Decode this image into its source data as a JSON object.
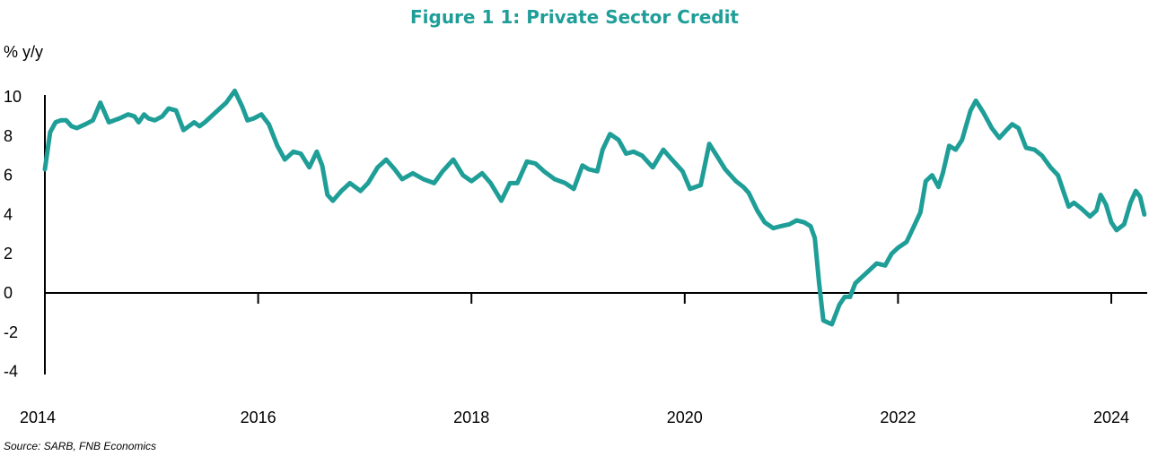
{
  "colors": {
    "series": "#1f9e98",
    "title": "#1f9e98",
    "axis": "#000000"
  },
  "title": "Figure 1 1: Private Sector Credit",
  "ylabel": "% y/y",
  "source": "Source: SARB, FNB Economics",
  "chart_data": {
    "type": "line",
    "title": "Figure 1 1: Private Sector Credit",
    "ylabel": "% y/y",
    "xlabel": "",
    "xlim": [
      2014,
      2024.35
    ],
    "ylim": [
      -4,
      10
    ],
    "y_ticks": [
      10,
      8,
      6,
      4,
      2,
      0,
      -2,
      -4
    ],
    "x_ticks": [
      2014,
      2016,
      2018,
      2020,
      2022,
      2024
    ],
    "x_tick_labels": [
      "2014",
      "2016",
      "2018",
      "2020",
      "2022",
      "2024"
    ],
    "grid": false,
    "legend": "none",
    "series": [
      {
        "points": [
          [
            2014.0,
            6.3
          ],
          [
            2014.05,
            8.2
          ],
          [
            2014.1,
            8.7
          ],
          [
            2014.15,
            8.8
          ],
          [
            2014.2,
            8.8
          ],
          [
            2014.25,
            8.5
          ],
          [
            2014.3,
            8.4
          ],
          [
            2014.38,
            8.6
          ],
          [
            2014.45,
            8.8
          ],
          [
            2014.52,
            9.7
          ],
          [
            2014.6,
            8.7
          ],
          [
            2014.7,
            8.9
          ],
          [
            2014.78,
            9.1
          ],
          [
            2014.84,
            9.0
          ],
          [
            2014.88,
            8.7
          ],
          [
            2014.93,
            9.1
          ],
          [
            2014.97,
            8.9
          ],
          [
            2015.03,
            8.8
          ],
          [
            2015.1,
            9.0
          ],
          [
            2015.16,
            9.4
          ],
          [
            2015.23,
            9.3
          ],
          [
            2015.3,
            8.3
          ],
          [
            2015.35,
            8.5
          ],
          [
            2015.4,
            8.7
          ],
          [
            2015.45,
            8.5
          ],
          [
            2015.5,
            8.7
          ],
          [
            2015.6,
            9.2
          ],
          [
            2015.7,
            9.7
          ],
          [
            2015.78,
            10.3
          ],
          [
            2015.85,
            9.5
          ],
          [
            2015.9,
            8.8
          ],
          [
            2015.96,
            8.9
          ],
          [
            2016.03,
            9.1
          ],
          [
            2016.1,
            8.6
          ],
          [
            2016.18,
            7.5
          ],
          [
            2016.25,
            6.8
          ],
          [
            2016.33,
            7.2
          ],
          [
            2016.4,
            7.1
          ],
          [
            2016.48,
            6.4
          ],
          [
            2016.55,
            7.2
          ],
          [
            2016.6,
            6.5
          ],
          [
            2016.65,
            5.0
          ],
          [
            2016.7,
            4.7
          ],
          [
            2016.78,
            5.2
          ],
          [
            2016.86,
            5.6
          ],
          [
            2016.96,
            5.2
          ],
          [
            2017.03,
            5.6
          ],
          [
            2017.12,
            6.4
          ],
          [
            2017.2,
            6.8
          ],
          [
            2017.28,
            6.3
          ],
          [
            2017.35,
            5.8
          ],
          [
            2017.45,
            6.1
          ],
          [
            2017.55,
            5.8
          ],
          [
            2017.65,
            5.6
          ],
          [
            2017.73,
            6.2
          ],
          [
            2017.83,
            6.8
          ],
          [
            2017.92,
            6.0
          ],
          [
            2018.0,
            5.7
          ],
          [
            2018.1,
            6.1
          ],
          [
            2018.18,
            5.6
          ],
          [
            2018.28,
            4.7
          ],
          [
            2018.36,
            5.6
          ],
          [
            2018.43,
            5.6
          ],
          [
            2018.52,
            6.7
          ],
          [
            2018.6,
            6.6
          ],
          [
            2018.68,
            6.2
          ],
          [
            2018.78,
            5.8
          ],
          [
            2018.88,
            5.6
          ],
          [
            2018.96,
            5.3
          ],
          [
            2019.04,
            6.5
          ],
          [
            2019.1,
            6.3
          ],
          [
            2019.18,
            6.2
          ],
          [
            2019.23,
            7.3
          ],
          [
            2019.3,
            8.1
          ],
          [
            2019.38,
            7.8
          ],
          [
            2019.45,
            7.1
          ],
          [
            2019.52,
            7.2
          ],
          [
            2019.6,
            7.0
          ],
          [
            2019.7,
            6.4
          ],
          [
            2019.8,
            7.3
          ],
          [
            2019.88,
            6.8
          ],
          [
            2019.98,
            6.2
          ],
          [
            2020.05,
            5.3
          ],
          [
            2020.15,
            5.5
          ],
          [
            2020.23,
            7.6
          ],
          [
            2020.3,
            7.0
          ],
          [
            2020.38,
            6.3
          ],
          [
            2020.48,
            5.7
          ],
          [
            2020.55,
            5.4
          ],
          [
            2020.6,
            5.1
          ],
          [
            2020.68,
            4.2
          ],
          [
            2020.75,
            3.6
          ],
          [
            2020.83,
            3.3
          ],
          [
            2020.9,
            3.4
          ],
          [
            2020.98,
            3.5
          ],
          [
            2021.05,
            3.7
          ],
          [
            2021.12,
            3.6
          ],
          [
            2021.18,
            3.4
          ],
          [
            2021.22,
            2.8
          ],
          [
            2021.26,
            0.5
          ],
          [
            2021.3,
            -1.4
          ],
          [
            2021.38,
            -1.6
          ],
          [
            2021.45,
            -0.6
          ],
          [
            2021.5,
            -0.2
          ],
          [
            2021.55,
            -0.2
          ],
          [
            2021.6,
            0.5
          ],
          [
            2021.7,
            1.0
          ],
          [
            2021.8,
            1.5
          ],
          [
            2021.88,
            1.4
          ],
          [
            2021.94,
            2.0
          ],
          [
            2022.0,
            2.3
          ],
          [
            2022.08,
            2.6
          ],
          [
            2022.15,
            3.4
          ],
          [
            2022.21,
            4.1
          ],
          [
            2022.26,
            5.7
          ],
          [
            2022.32,
            6.0
          ],
          [
            2022.38,
            5.4
          ],
          [
            2022.42,
            6.1
          ],
          [
            2022.48,
            7.5
          ],
          [
            2022.54,
            7.3
          ],
          [
            2022.6,
            7.8
          ],
          [
            2022.68,
            9.3
          ],
          [
            2022.73,
            9.8
          ],
          [
            2022.8,
            9.2
          ],
          [
            2022.88,
            8.4
          ],
          [
            2022.95,
            7.9
          ],
          [
            2023.0,
            8.2
          ],
          [
            2023.07,
            8.6
          ],
          [
            2023.13,
            8.4
          ],
          [
            2023.2,
            7.4
          ],
          [
            2023.28,
            7.3
          ],
          [
            2023.35,
            7.0
          ],
          [
            2023.43,
            6.4
          ],
          [
            2023.5,
            6.0
          ],
          [
            2023.55,
            5.2
          ],
          [
            2023.6,
            4.4
          ],
          [
            2023.65,
            4.6
          ],
          [
            2023.72,
            4.3
          ],
          [
            2023.8,
            3.9
          ],
          [
            2023.86,
            4.2
          ],
          [
            2023.9,
            5.0
          ],
          [
            2023.95,
            4.5
          ],
          [
            2024.0,
            3.6
          ],
          [
            2024.05,
            3.2
          ],
          [
            2024.12,
            3.5
          ],
          [
            2024.18,
            4.6
          ],
          [
            2024.23,
            5.2
          ],
          [
            2024.27,
            4.9
          ],
          [
            2024.31,
            4.0
          ]
        ]
      }
    ]
  }
}
